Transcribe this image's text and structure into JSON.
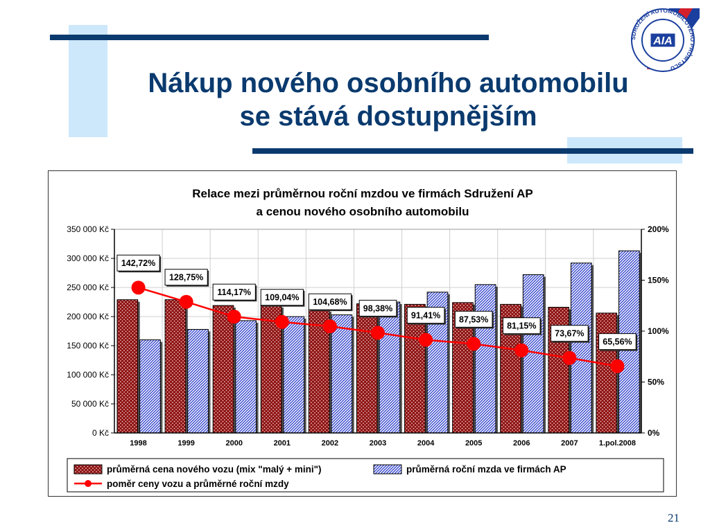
{
  "slide": {
    "title_line1": "Nákup nového osobního automobilu",
    "title_line2": "se stává dostupnějším",
    "page_number": "21",
    "logo_text": "AIA",
    "logo_ring_text": "SDRUŽENÍ AUTOMOBILOVÉHO PRŮMYSLU",
    "accent_color": "#0a3a6e",
    "light_color": "#cde8fb"
  },
  "chart_data": {
    "type": "bar",
    "title_line1": "Relace mezi průměrnou roční mzdou ve firmách Sdružení AP",
    "title_line2": "a cenou nového osobního automobilu",
    "categories": [
      "1998",
      "1999",
      "2000",
      "2001",
      "2002",
      "2003",
      "2004",
      "2005",
      "2006",
      "2007",
      "1.pol.2008"
    ],
    "y_left": {
      "min": 0,
      "max": 350000,
      "step": 50000,
      "ticks": [
        "0 Kč",
        "50 000 Kč",
        "100 000 Kč",
        "150 000 Kč",
        "200 000 Kč",
        "250 000 Kč",
        "300 000 Kč",
        "350 000 Kč"
      ]
    },
    "y_right": {
      "min": 0,
      "max": 200,
      "step": 50,
      "ticks": [
        "0%",
        "50%",
        "100%",
        "150%",
        "200%"
      ]
    },
    "grid": true,
    "legend_position": "bottom",
    "series": [
      {
        "name": "průměrná cena nového vozu (mix \"malý + mini\")",
        "type": "bar",
        "axis": "left",
        "color": "#8b1a1a",
        "values": [
          229000,
          229000,
          219000,
          219000,
          212000,
          222000,
          221000,
          224000,
          221000,
          216000,
          206000
        ]
      },
      {
        "name": "průměrná roční mzda ve firmách AP",
        "type": "bar",
        "axis": "left",
        "color": "#3344cc",
        "values": [
          160000,
          178000,
          193000,
          200000,
          203000,
          225000,
          242000,
          255000,
          272000,
          292000,
          313000
        ]
      },
      {
        "name": "poměr ceny vozu a průměrné roční mzdy",
        "type": "line",
        "axis": "right",
        "color": "#ff0000",
        "values": [
          142.72,
          128.75,
          114.17,
          109.04,
          104.68,
          98.38,
          91.41,
          87.53,
          81.15,
          73.67,
          65.56
        ],
        "labels": [
          "142,72%",
          "128,75%",
          "114,17%",
          "109,04%",
          "104,68%",
          "98,38%",
          "91,41%",
          "87,53%",
          "81,15%",
          "73,67%",
          "65,56%"
        ]
      }
    ]
  }
}
